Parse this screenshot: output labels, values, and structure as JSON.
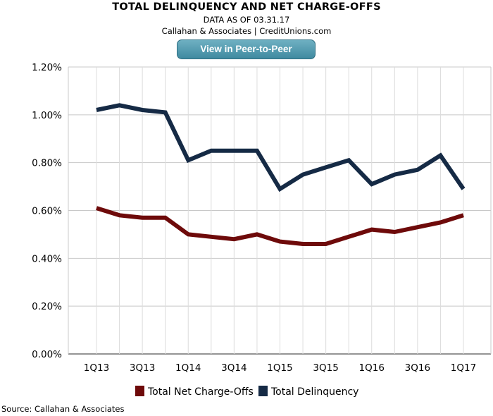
{
  "header": {
    "title": "TOTAL DELINQUENCY AND NET CHARGE-OFFS",
    "subtitle": "DATA AS OF 03.31.17",
    "attribution": "Callahan & Associates | CreditUnions.com",
    "button_label": "View in Peer-to-Peer"
  },
  "source": "Source: Callahan & Associates",
  "chart_data": {
    "type": "line",
    "categories": [
      "1Q13",
      "2Q13",
      "3Q13",
      "4Q13",
      "1Q14",
      "2Q14",
      "3Q14",
      "4Q14",
      "1Q15",
      "2Q15",
      "3Q15",
      "4Q15",
      "1Q16",
      "2Q16",
      "3Q16",
      "4Q16",
      "1Q17"
    ],
    "x_tick_labels": [
      "1Q13",
      "3Q13",
      "1Q14",
      "3Q14",
      "1Q15",
      "3Q15",
      "1Q16",
      "3Q16",
      "1Q17"
    ],
    "y_tick_labels": [
      "0.00%",
      "0.20%",
      "0.40%",
      "0.60%",
      "0.80%",
      "1.00%",
      "1.20%"
    ],
    "ylim": [
      0,
      1.2
    ],
    "yticks": [
      0,
      0.2,
      0.4,
      0.6,
      0.8,
      1.0,
      1.2
    ],
    "grid": true,
    "legend_position": "bottom",
    "series": [
      {
        "name": "Total Net Charge-Offs",
        "color": "#6e0a0a",
        "values": [
          0.61,
          0.58,
          0.57,
          0.57,
          0.5,
          0.49,
          0.48,
          0.5,
          0.47,
          0.46,
          0.46,
          0.49,
          0.52,
          0.51,
          0.53,
          0.55,
          0.58
        ]
      },
      {
        "name": "Total Delinquency",
        "color": "#152a45",
        "values": [
          1.02,
          1.04,
          1.02,
          1.01,
          0.81,
          0.85,
          0.85,
          0.85,
          0.69,
          0.75,
          0.78,
          0.81,
          0.71,
          0.75,
          0.77,
          0.83,
          0.69
        ]
      }
    ]
  }
}
